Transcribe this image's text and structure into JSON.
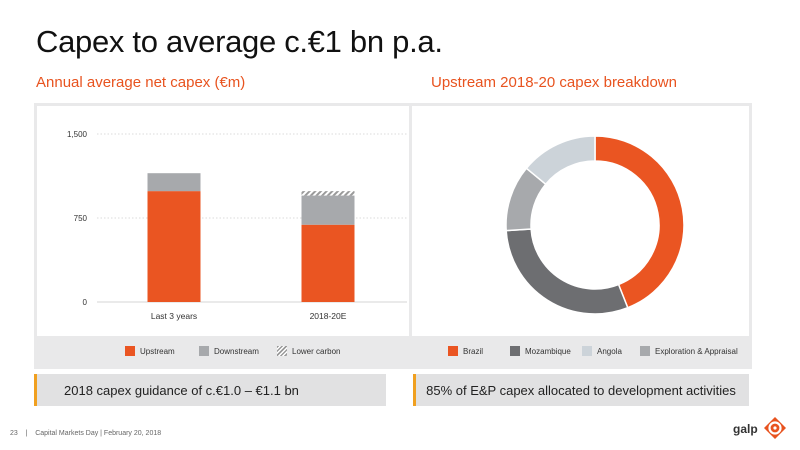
{
  "slide": {
    "title": "Capex to average c.€1 bn p.a.",
    "page_number": "23",
    "separator": "|",
    "footer": "Capital Markets Day | February 20, 2018",
    "logo_text": "galp"
  },
  "colors": {
    "accent": "#e8531f",
    "upstream": "#ea5522",
    "downstream": "#a7a9ac",
    "lower_carbon": "#9a9a9a",
    "brazil": "#ea5522",
    "mozambique": "#6d6e71",
    "angola": "#ccd3d9",
    "exploration": "#a7a9ac",
    "callout_bar": "#f0a020"
  },
  "left": {
    "subtitle": "Annual average net capex (€m)",
    "callout": "2018 capex guidance of c.€1.0 – €1.1 bn",
    "legend": [
      "Upstream",
      "Downstream",
      "Lower carbon"
    ]
  },
  "right": {
    "subtitle": "Upstream 2018-20 capex breakdown",
    "callout": "85% of E&P capex allocated to development activities",
    "legend": [
      "Brazil",
      "Mozambique",
      "Angola",
      "Exploration & Appraisal"
    ]
  },
  "chart_data": [
    {
      "type": "bar",
      "stacked": true,
      "categories": [
        "Last 3 years",
        "2018-20E"
      ],
      "series": [
        {
          "name": "Upstream",
          "values": [
            990,
            690
          ]
        },
        {
          "name": "Downstream",
          "values": [
            160,
            260
          ]
        },
        {
          "name": "Lower carbon",
          "values": [
            0,
            40
          ]
        }
      ],
      "ylim": [
        0,
        1500
      ],
      "yticks": [
        0,
        750,
        1500
      ],
      "ytick_labels": [
        "0",
        "750",
        "1,500"
      ],
      "grid": true
    },
    {
      "type": "pie",
      "donut": true,
      "labels": [
        "Brazil",
        "Mozambique",
        "Angola",
        "Exploration & Appraisal"
      ],
      "values": [
        44,
        30,
        14,
        12
      ],
      "order_clockwise_from_top": [
        "Brazil",
        "Mozambique",
        "Exploration & Appraisal",
        "Angola"
      ]
    }
  ]
}
